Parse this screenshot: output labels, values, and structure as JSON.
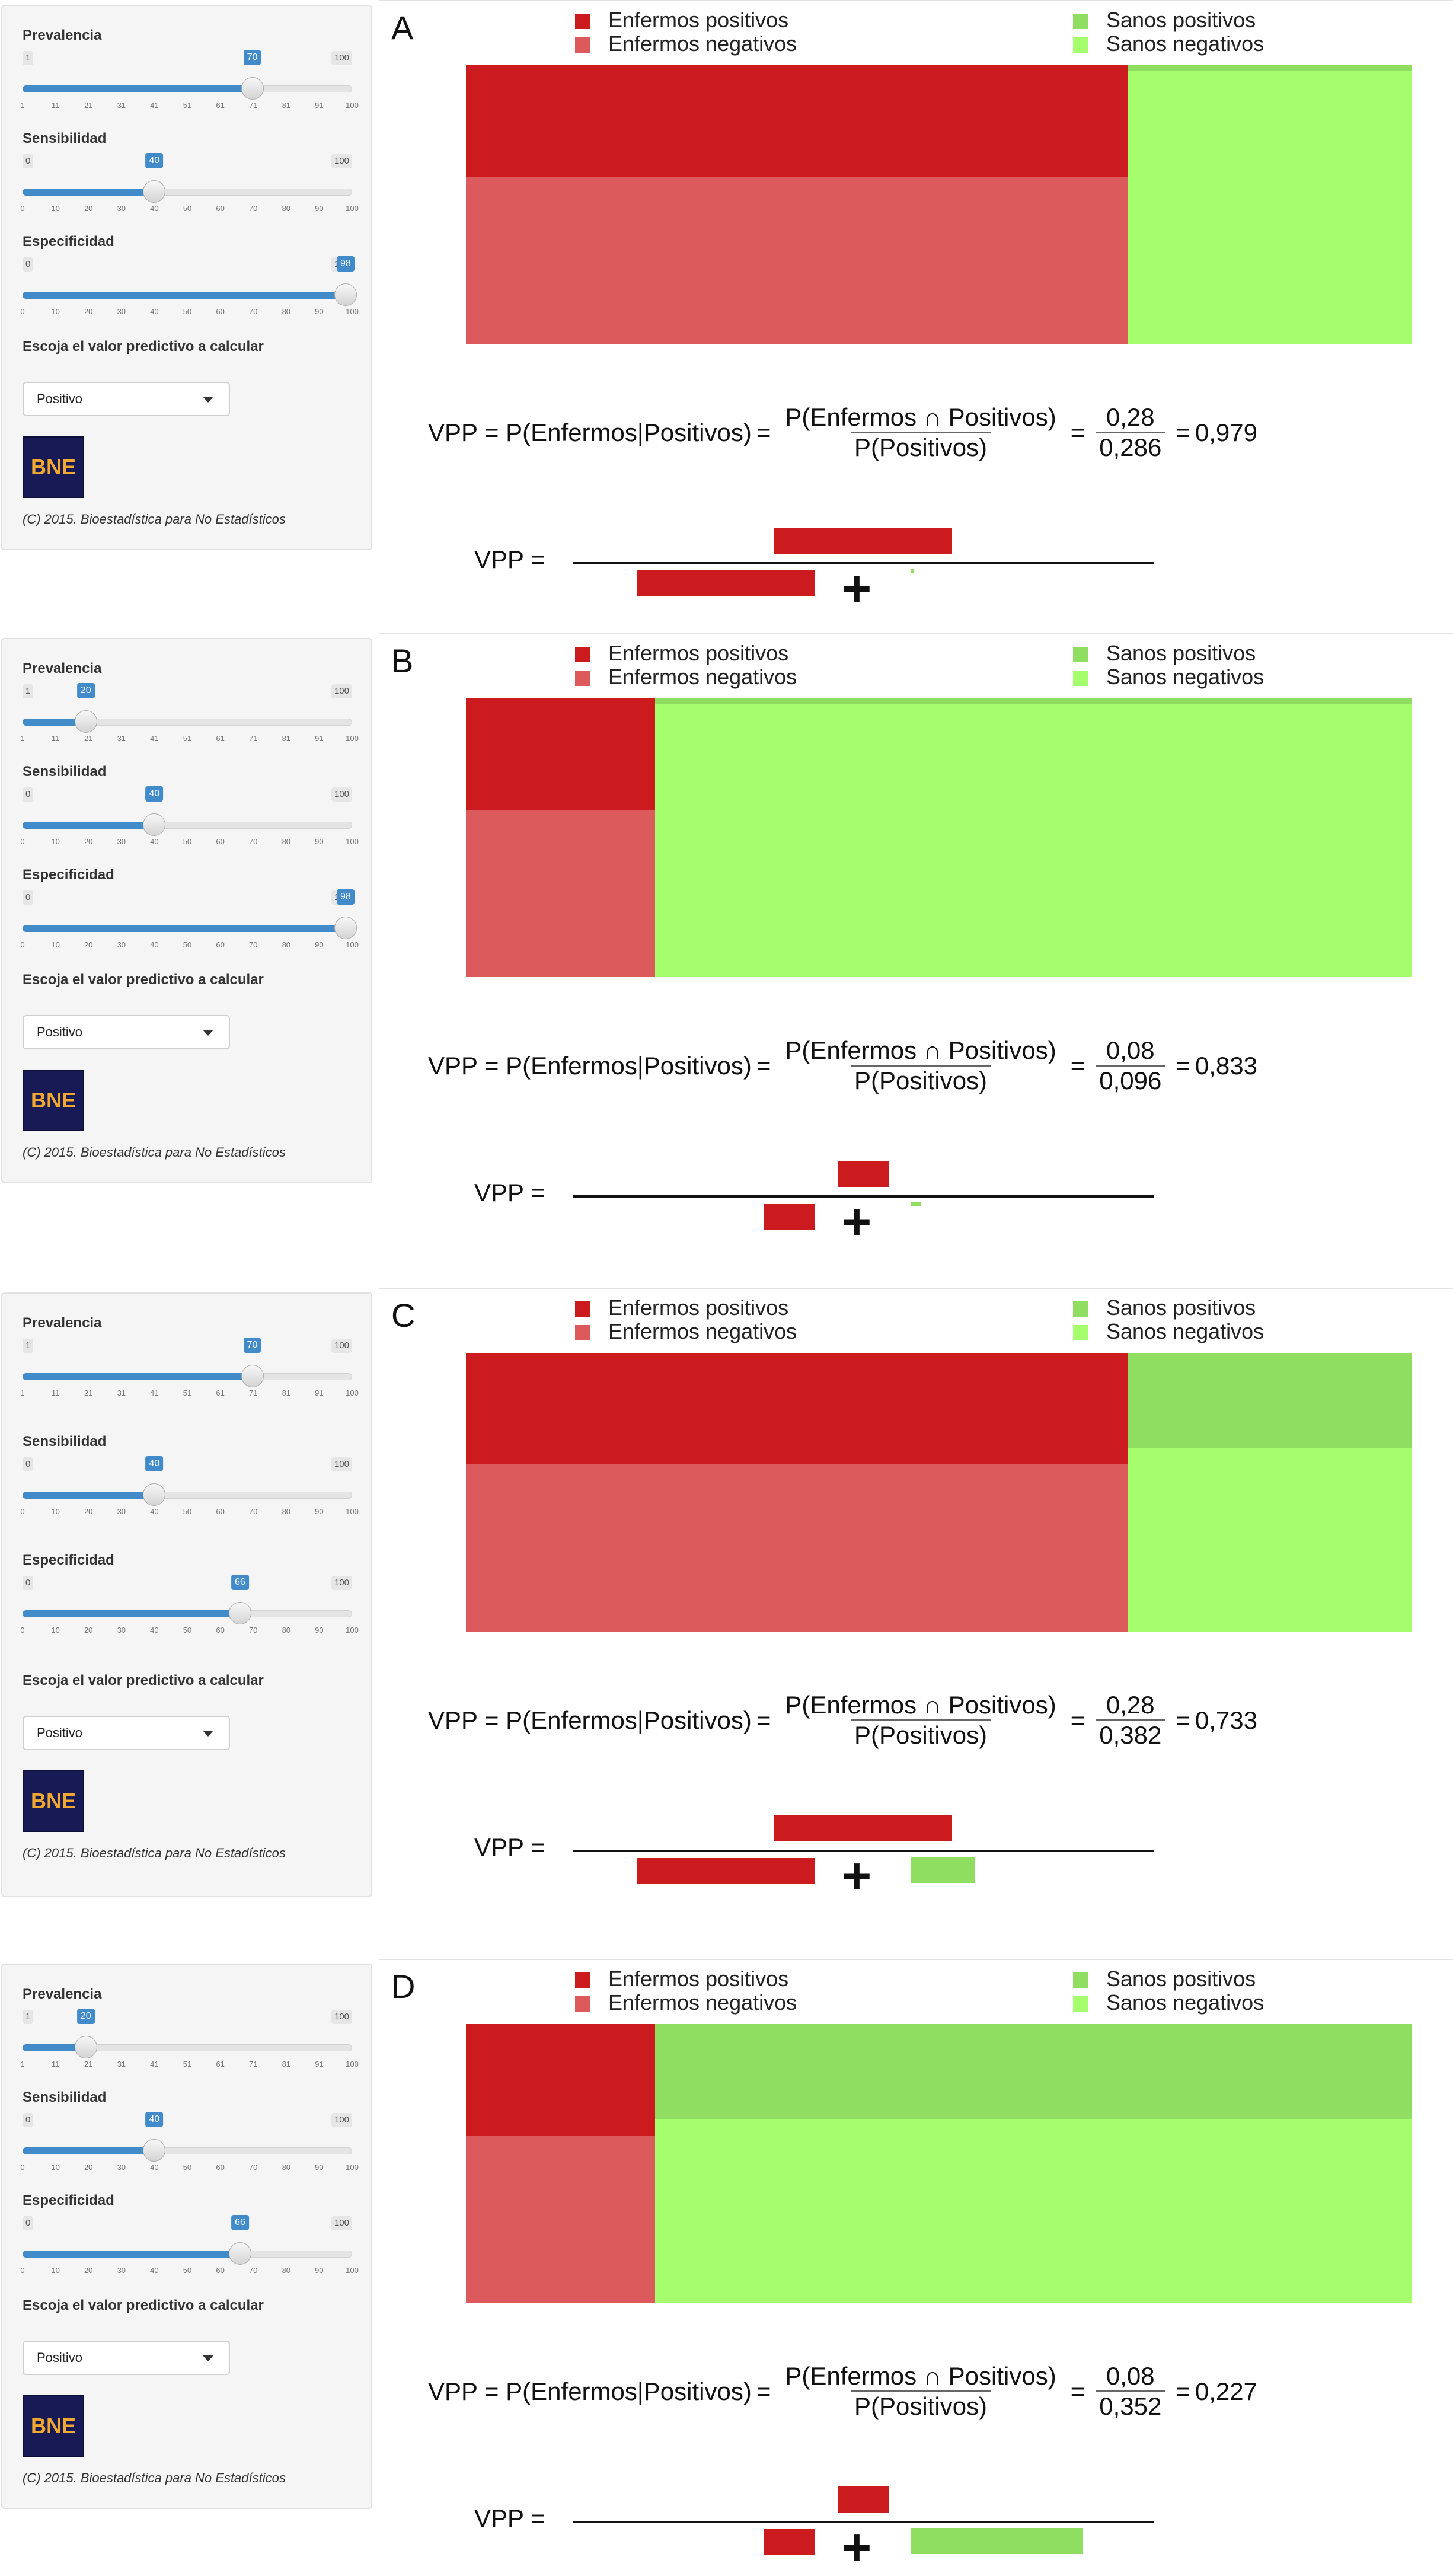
{
  "colors": {
    "enfermos_positivos": "#cc1b1f",
    "enfermos_negativos": "#dc5a5c",
    "sanos_positivos": "#8fdd61",
    "sanos_negativos": "#a5ff6c",
    "slider_accent": "#428bca"
  },
  "legend": {
    "enfermos_positivos": "Enfermos positivos",
    "enfermos_negativos": "Enfermos negativos",
    "sanos_positivos": "Sanos positivos",
    "sanos_negativos": "Sanos negativos"
  },
  "sidebar_labels": {
    "prevalencia": "Prevalencia",
    "sensibilidad": "Sensibilidad",
    "especificidad": "Especificidad",
    "select_label": "Escoja el valor predictivo a calcular",
    "select_value": "Positivo",
    "logo_text": "BNE",
    "copyright": "(C) 2015. Bioestadística para No Estadísticos"
  },
  "formula": {
    "lhs": "VPP = P(Enfermos|Positivos)",
    "numerator": "P(Enfermos ∩ Positivos)",
    "denominator": "P(Positivos)",
    "bar_label": "VPP =",
    "plus": "+"
  },
  "ticks": {
    "prevalencia": [
      "1",
      "11",
      "21",
      "31",
      "41",
      "51",
      "61",
      "71",
      "81",
      "91",
      "100"
    ],
    "standard": [
      "0",
      "10",
      "20",
      "30",
      "40",
      "50",
      "60",
      "70",
      "80",
      "90",
      "100"
    ]
  },
  "panels": [
    {
      "letter": "A",
      "prevalencia": {
        "min": "1",
        "max": "100",
        "value": "70",
        "num": 70
      },
      "sensibilidad": {
        "min": "0",
        "max": "100",
        "value": "40",
        "num": 40
      },
      "especificidad": {
        "min": "0",
        "max": "100",
        "value": "98",
        "num": 98
      },
      "ep": 0.28,
      "en": 0.42,
      "sp": 0.006,
      "sn": 0.294,
      "num_value": "0,28",
      "den_value": "0,286",
      "result": "0,979"
    },
    {
      "letter": "B",
      "prevalencia": {
        "min": "1",
        "max": "100",
        "value": "20",
        "num": 20
      },
      "sensibilidad": {
        "min": "0",
        "max": "100",
        "value": "40",
        "num": 40
      },
      "especificidad": {
        "min": "0",
        "max": "100",
        "value": "98",
        "num": 98
      },
      "ep": 0.08,
      "en": 0.12,
      "sp": 0.016,
      "sn": 0.784,
      "num_value": "0,08",
      "den_value": "0,096",
      "result": "0,833"
    },
    {
      "letter": "C",
      "prevalencia": {
        "min": "1",
        "max": "100",
        "value": "70",
        "num": 70
      },
      "sensibilidad": {
        "min": "0",
        "max": "100",
        "value": "40",
        "num": 40
      },
      "especificidad": {
        "min": "0",
        "max": "100",
        "value": "66",
        "num": 66
      },
      "ep": 0.28,
      "en": 0.42,
      "sp": 0.102,
      "sn": 0.198,
      "num_value": "0,28",
      "den_value": "0,382",
      "result": "0,733"
    },
    {
      "letter": "D",
      "prevalencia": {
        "min": "1",
        "max": "100",
        "value": "20",
        "num": 20
      },
      "sensibilidad": {
        "min": "0",
        "max": "100",
        "value": "40",
        "num": 40
      },
      "especificidad": {
        "min": "0",
        "max": "100",
        "value": "66",
        "num": 66
      },
      "ep": 0.08,
      "en": 0.12,
      "sp": 0.272,
      "sn": 0.528,
      "num_value": "0,08",
      "den_value": "0,352",
      "result": "0,227"
    }
  ]
}
